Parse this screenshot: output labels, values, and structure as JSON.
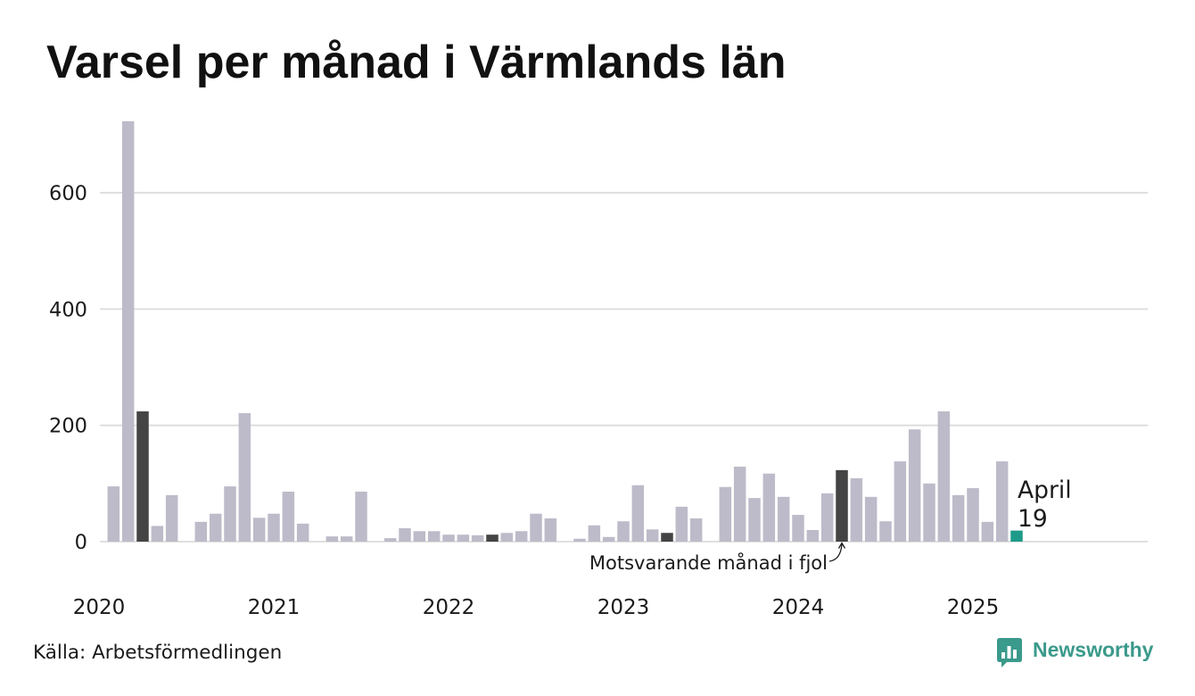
{
  "source": "Källa: Arbetsförmedlingen",
  "brand": {
    "name": "Newsworthy",
    "icon": "newsworthy-logo-icon"
  },
  "colors": {
    "bar": "#bdbbc9",
    "same_month_previous_years": "#444444",
    "current_month": "#1e9a89",
    "grid": "#dcdcdc",
    "text": "#1a1a1a",
    "brand": "#3a9a8b"
  },
  "chart_data": {
    "type": "bar",
    "title": "Varsel per månad i Värmlands län",
    "x": [
      "2020-01",
      "2020-02",
      "2020-03",
      "2020-04",
      "2020-05",
      "2020-06",
      "2020-07",
      "2020-08",
      "2020-09",
      "2020-10",
      "2020-11",
      "2020-12",
      "2021-01",
      "2021-02",
      "2021-03",
      "2021-04",
      "2021-05",
      "2021-06",
      "2021-07",
      "2021-08",
      "2021-09",
      "2021-10",
      "2021-11",
      "2021-12",
      "2022-01",
      "2022-02",
      "2022-03",
      "2022-04",
      "2022-05",
      "2022-06",
      "2022-07",
      "2022-08",
      "2022-09",
      "2022-10",
      "2022-11",
      "2022-12",
      "2023-01",
      "2023-02",
      "2023-03",
      "2023-04",
      "2023-05",
      "2023-06",
      "2023-07",
      "2023-08",
      "2023-09",
      "2023-10",
      "2023-11",
      "2023-12",
      "2024-01",
      "2024-02",
      "2024-03",
      "2024-04",
      "2024-05",
      "2024-06",
      "2024-07",
      "2024-08",
      "2024-09",
      "2024-10",
      "2024-11",
      "2024-12",
      "2025-01",
      "2025-02",
      "2025-03",
      "2025-04"
    ],
    "values": [
      0,
      95,
      723,
      224,
      27,
      80,
      0,
      34,
      48,
      95,
      221,
      41,
      48,
      86,
      31,
      0,
      9,
      9,
      86,
      0,
      6,
      23,
      18,
      18,
      12,
      12,
      11,
      12,
      15,
      18,
      48,
      40,
      0,
      5,
      28,
      8,
      35,
      97,
      21,
      15,
      60,
      40,
      0,
      94,
      129,
      75,
      117,
      77,
      46,
      20,
      83,
      123,
      109,
      77,
      35,
      138,
      193,
      100,
      224,
      80,
      92,
      34,
      138,
      19
    ],
    "xlim": [
      "2020-01",
      "2025-12"
    ],
    "ylim": [
      0,
      730
    ],
    "yticks": [
      0,
      200,
      400,
      600
    ],
    "xticks": [
      "2020-01",
      "2021-01",
      "2022-01",
      "2023-01",
      "2024-01",
      "2025-01"
    ],
    "xtick_labels": [
      "2020",
      "2021",
      "2022",
      "2023",
      "2024",
      "2025"
    ],
    "grid": true,
    "highlight": {
      "x": "2025-04",
      "label": "April",
      "value": 19
    },
    "annotations": [
      {
        "text": "Motsvarande månad i fjol",
        "target": "2024-04"
      }
    ]
  }
}
